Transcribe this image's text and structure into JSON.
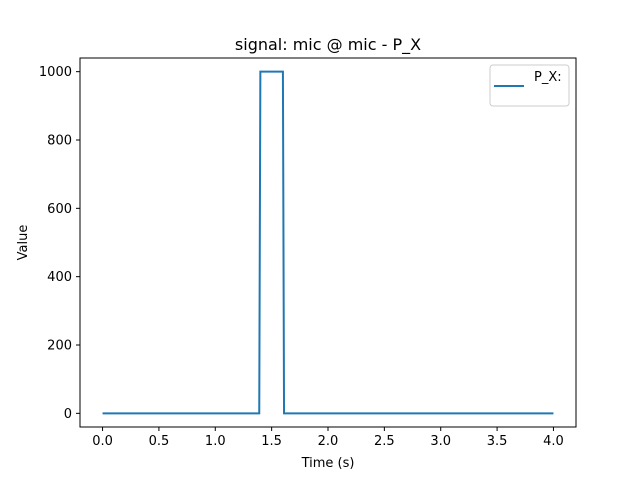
{
  "chart_data": {
    "type": "line",
    "title": "signal: mic @ mic - P_X",
    "xlabel": "Time (s)",
    "ylabel": "Value",
    "xlim": [
      -0.2,
      4.2
    ],
    "ylim": [
      -40,
      1040
    ],
    "xticks": [
      0.0,
      0.5,
      1.0,
      1.5,
      2.0,
      2.5,
      3.0,
      3.5,
      4.0
    ],
    "xtick_labels": [
      "0.0",
      "0.5",
      "1.0",
      "1.5",
      "2.0",
      "2.5",
      "3.0",
      "3.5",
      "4.0"
    ],
    "yticks": [
      0,
      200,
      400,
      600,
      800,
      1000
    ],
    "ytick_labels": [
      "0",
      "200",
      "400",
      "600",
      "800",
      "1000"
    ],
    "grid": false,
    "legend_position": "top-right",
    "series": [
      {
        "name": "P_X:",
        "color": "#1f77b4",
        "x": [
          0.0,
          1.39,
          1.4,
          1.6,
          1.61,
          4.0
        ],
        "y": [
          0,
          0,
          1000,
          1000,
          0,
          0
        ]
      }
    ]
  }
}
